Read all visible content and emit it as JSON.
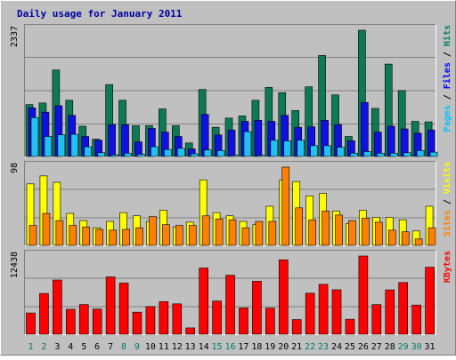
{
  "chart_data": [
    {
      "type": "bar",
      "title": "Daily usage for January 2011",
      "ymax_label": "2337",
      "legend": [
        {
          "label": "Pages",
          "color": "#00bfff"
        },
        {
          "label": "Files",
          "color": "#0000ff"
        },
        {
          "label": "Hits",
          "color": "#00805c"
        }
      ],
      "categories": [
        "1",
        "2",
        "3",
        "4",
        "5",
        "6",
        "7",
        "8",
        "9",
        "10",
        "11",
        "12",
        "13",
        "14",
        "15",
        "16",
        "17",
        "18",
        "19",
        "20",
        "21",
        "22",
        "23",
        "24",
        "25",
        "26",
        "27",
        "28",
        "29",
        "30",
        "31"
      ],
      "series": [
        {
          "name": "Hits",
          "color": "#0e7a55",
          "values": [
            960,
            990,
            1600,
            1040,
            560,
            320,
            1330,
            1040,
            570,
            570,
            880,
            570,
            250,
            1240,
            540,
            710,
            750,
            1040,
            1280,
            1180,
            850,
            1290,
            1870,
            1140,
            370,
            2337,
            890,
            1710,
            1220,
            650,
            640
          ]
        },
        {
          "name": "Files",
          "color": "#1010e0",
          "values": [
            900,
            820,
            940,
            760,
            370,
            300,
            590,
            590,
            270,
            520,
            450,
            370,
            140,
            780,
            400,
            490,
            650,
            670,
            650,
            760,
            540,
            550,
            670,
            590,
            290,
            1000,
            450,
            560,
            510,
            430,
            490
          ]
        },
        {
          "name": "Pages",
          "color": "#20c0f0",
          "values": [
            720,
            370,
            400,
            410,
            180,
            70,
            30,
            60,
            40,
            180,
            130,
            150,
            50,
            120,
            110,
            20,
            460,
            20,
            300,
            290,
            300,
            200,
            200,
            170,
            60,
            90,
            60,
            60,
            70,
            110,
            80
          ]
        }
      ]
    },
    {
      "type": "bar",
      "ymax_label": "98",
      "legend": [
        {
          "label": "Sites",
          "color": "#ff8000"
        },
        {
          "label": "Visits",
          "color": "#ffff00"
        }
      ],
      "categories": [
        "1",
        "2",
        "3",
        "4",
        "5",
        "6",
        "7",
        "8",
        "9",
        "10",
        "11",
        "12",
        "13",
        "14",
        "15",
        "16",
        "17",
        "18",
        "19",
        "20",
        "21",
        "22",
        "23",
        "24",
        "25",
        "26",
        "27",
        "28",
        "29",
        "30",
        "31"
      ],
      "series": [
        {
          "name": "Visits",
          "color": "#ffff00",
          "values": [
            77,
            87,
            79,
            40,
            31,
            22,
            30,
            41,
            37,
            30,
            44,
            23,
            29,
            82,
            41,
            37,
            30,
            26,
            49,
            82,
            80,
            62,
            65,
            43,
            27,
            44,
            35,
            35,
            32,
            18,
            49
          ]
        },
        {
          "name": "Sites",
          "color": "#ff8000",
          "values": [
            25,
            40,
            31,
            25,
            23,
            20,
            19,
            20,
            22,
            36,
            26,
            25,
            25,
            37,
            33,
            32,
            22,
            30,
            30,
            98,
            47,
            32,
            43,
            38,
            31,
            34,
            29,
            19,
            17,
            8,
            22
          ]
        }
      ]
    },
    {
      "type": "bar",
      "ymax_label": "12438",
      "legend": [
        {
          "label": "KBytes",
          "color": "#ff0000"
        }
      ],
      "categories": [
        "1",
        "2",
        "3",
        "4",
        "5",
        "6",
        "7",
        "8",
        "9",
        "10",
        "11",
        "12",
        "13",
        "14",
        "15",
        "16",
        "17",
        "18",
        "19",
        "20",
        "21",
        "22",
        "23",
        "24",
        "25",
        "26",
        "27",
        "28",
        "29",
        "30",
        "31"
      ],
      "series": [
        {
          "name": "KBytes",
          "color": "#ff0000",
          "values": [
            3380,
            6480,
            8620,
            3970,
            4720,
            4000,
            9110,
            8130,
            3510,
            4390,
            5180,
            4830,
            1000,
            10530,
            5280,
            9380,
            4180,
            8420,
            4150,
            11820,
            2330,
            6520,
            7930,
            7070,
            2380,
            12438,
            4710,
            7050,
            8220,
            4640,
            10660
          ]
        }
      ]
    }
  ],
  "weekend_days": [
    1,
    2,
    8,
    9,
    15,
    16,
    22,
    23,
    29,
    30
  ]
}
